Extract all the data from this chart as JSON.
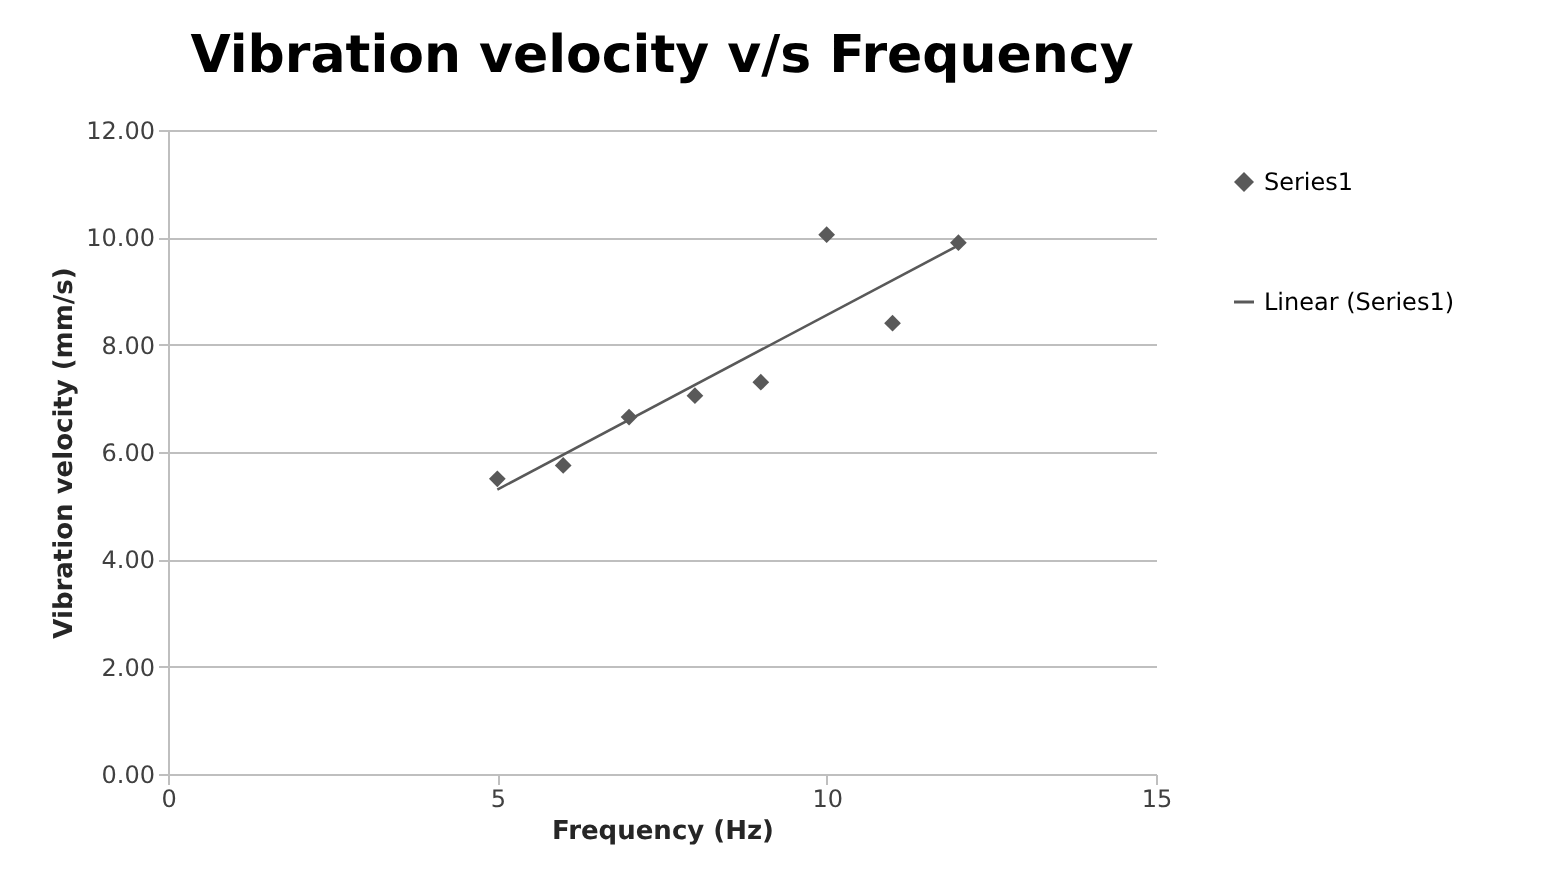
{
  "chart_data": {
    "type": "scatter",
    "title": "Vibration velocity v/s Frequency",
    "xlabel": "Frequency (Hz)",
    "ylabel": "Vibration velocity (mm/s)",
    "x": [
      5,
      6,
      7,
      8,
      9,
      10,
      11,
      12
    ],
    "series": [
      {
        "name": "Series1",
        "color": "#595959",
        "marker": "diamond",
        "values": [
          5.5,
          5.75,
          6.65,
          7.05,
          7.3,
          10.05,
          8.4,
          9.9
        ]
      },
      {
        "name": "Linear (Series1)",
        "type": "line",
        "color": "#595959",
        "marker": "none",
        "line_style": "solid",
        "x": [
          5,
          12
        ],
        "values": [
          5.3,
          9.85
        ]
      }
    ],
    "xlim": [
      0,
      15
    ],
    "xticks": [
      0,
      5,
      10,
      15
    ],
    "ylim": [
      0,
      12
    ],
    "yticks": [
      {
        "value": 0,
        "label": "0.00"
      },
      {
        "value": 2,
        "label": "2.00"
      },
      {
        "value": 4,
        "label": "4.00"
      },
      {
        "value": 6,
        "label": "6.00"
      },
      {
        "value": 8,
        "label": "8.00"
      },
      {
        "value": 10,
        "label": "10.00"
      },
      {
        "value": 12,
        "label": "12.00"
      }
    ],
    "grid": "y",
    "legend": "right"
  }
}
